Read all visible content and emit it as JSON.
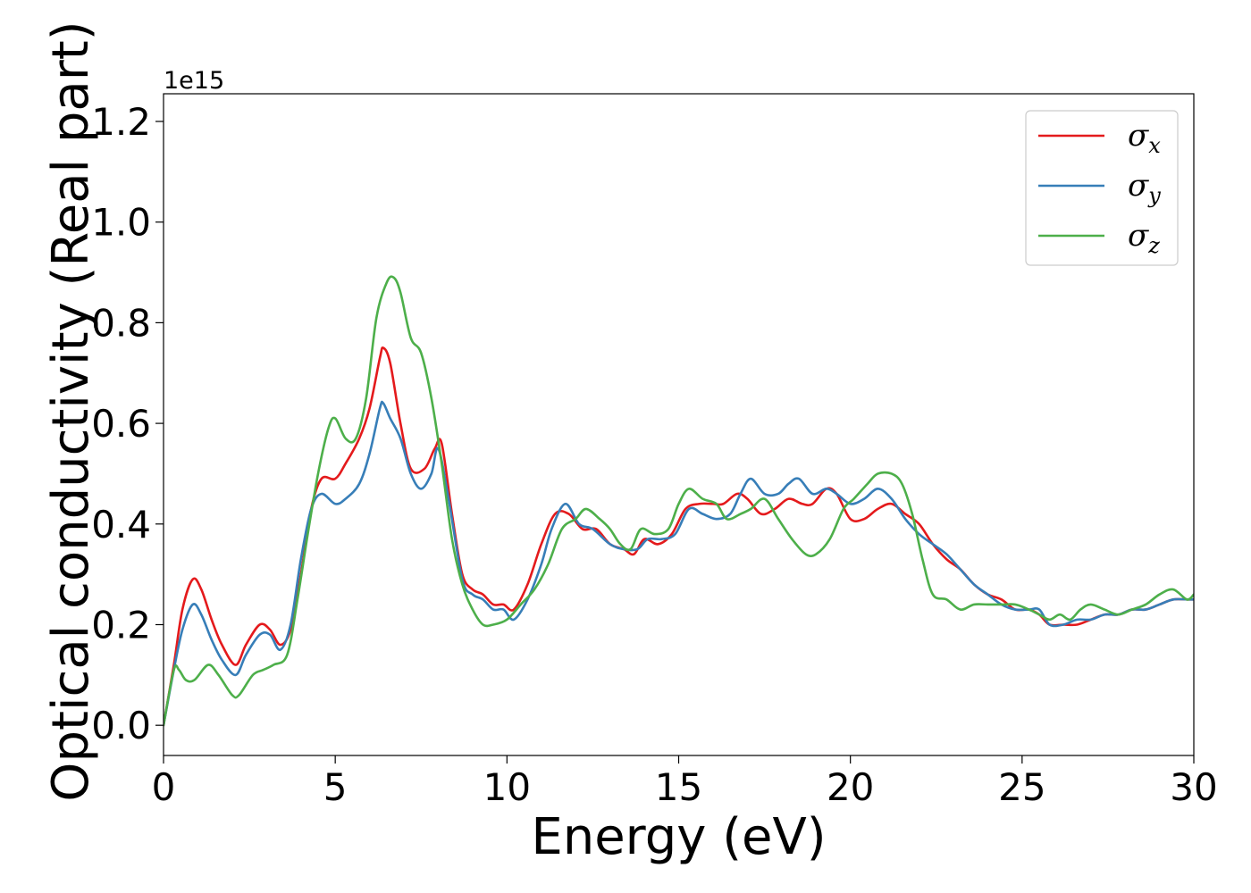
{
  "chart_data": {
    "type": "line",
    "title": "",
    "xlabel": "Energy (eV)",
    "ylabel": "Optical conductivity (Real part)",
    "y_offset_label": "1e15",
    "xlim": [
      0,
      30
    ],
    "ylim": [
      -0.06,
      1.255
    ],
    "xticks": [
      0,
      5,
      10,
      15,
      20,
      25,
      30
    ],
    "xtick_labels": [
      "0",
      "5",
      "10",
      "15",
      "20",
      "25",
      "30"
    ],
    "yticks": [
      0.0,
      0.2,
      0.4,
      0.6,
      0.8,
      1.0,
      1.2
    ],
    "ytick_labels": [
      "0.0",
      "0.2",
      "0.4",
      "0.6",
      "0.8",
      "1.0",
      "1.2"
    ],
    "grid": false,
    "legend_position": "top-right",
    "series": [
      {
        "name": "σ",
        "subscript": "x",
        "color": "#e41a1c",
        "points": [
          [
            0,
            0
          ],
          [
            0.3,
            0.12
          ],
          [
            0.55,
            0.23
          ],
          [
            0.85,
            0.29
          ],
          [
            1.1,
            0.27
          ],
          [
            1.4,
            0.21
          ],
          [
            1.7,
            0.16
          ],
          [
            2.1,
            0.12
          ],
          [
            2.4,
            0.16
          ],
          [
            2.8,
            0.2
          ],
          [
            3.1,
            0.19
          ],
          [
            3.4,
            0.16
          ],
          [
            3.7,
            0.19
          ],
          [
            4.0,
            0.3
          ],
          [
            4.3,
            0.43
          ],
          [
            4.6,
            0.49
          ],
          [
            5.0,
            0.49
          ],
          [
            5.3,
            0.52
          ],
          [
            5.7,
            0.57
          ],
          [
            6.0,
            0.63
          ],
          [
            6.3,
            0.73
          ],
          [
            6.4,
            0.75
          ],
          [
            6.6,
            0.72
          ],
          [
            6.9,
            0.6
          ],
          [
            7.2,
            0.51
          ],
          [
            7.6,
            0.51
          ],
          [
            7.9,
            0.55
          ],
          [
            8.1,
            0.56
          ],
          [
            8.4,
            0.42
          ],
          [
            8.7,
            0.3
          ],
          [
            9.0,
            0.27
          ],
          [
            9.3,
            0.26
          ],
          [
            9.6,
            0.24
          ],
          [
            9.9,
            0.24
          ],
          [
            10.2,
            0.23
          ],
          [
            10.6,
            0.28
          ],
          [
            11.0,
            0.36
          ],
          [
            11.4,
            0.42
          ],
          [
            11.8,
            0.42
          ],
          [
            12.2,
            0.39
          ],
          [
            12.6,
            0.39
          ],
          [
            13.0,
            0.36
          ],
          [
            13.4,
            0.35
          ],
          [
            13.7,
            0.34
          ],
          [
            14.0,
            0.37
          ],
          [
            14.4,
            0.36
          ],
          [
            14.8,
            0.38
          ],
          [
            15.2,
            0.43
          ],
          [
            15.6,
            0.44
          ],
          [
            16.0,
            0.44
          ],
          [
            16.3,
            0.44
          ],
          [
            16.7,
            0.46
          ],
          [
            17.0,
            0.45
          ],
          [
            17.4,
            0.42
          ],
          [
            17.8,
            0.43
          ],
          [
            18.2,
            0.45
          ],
          [
            18.6,
            0.44
          ],
          [
            18.9,
            0.44
          ],
          [
            19.3,
            0.47
          ],
          [
            19.6,
            0.46
          ],
          [
            20.0,
            0.41
          ],
          [
            20.4,
            0.41
          ],
          [
            20.8,
            0.43
          ],
          [
            21.2,
            0.44
          ],
          [
            21.6,
            0.42
          ],
          [
            22.0,
            0.4
          ],
          [
            22.4,
            0.36
          ],
          [
            22.8,
            0.33
          ],
          [
            23.2,
            0.31
          ],
          [
            23.6,
            0.28
          ],
          [
            24.0,
            0.26
          ],
          [
            24.4,
            0.25
          ],
          [
            24.8,
            0.23
          ],
          [
            25.2,
            0.23
          ],
          [
            25.5,
            0.22
          ],
          [
            25.8,
            0.2
          ],
          [
            26.2,
            0.2
          ],
          [
            26.6,
            0.2
          ],
          [
            27.0,
            0.21
          ],
          [
            27.4,
            0.22
          ],
          [
            27.8,
            0.22
          ],
          [
            28.2,
            0.23
          ],
          [
            28.6,
            0.23
          ],
          [
            29.0,
            0.24
          ],
          [
            29.4,
            0.25
          ],
          [
            29.8,
            0.25
          ],
          [
            30.0,
            0.25
          ]
        ]
      },
      {
        "name": "σ",
        "subscript": "y",
        "color": "#377eb8",
        "points": [
          [
            0,
            0
          ],
          [
            0.3,
            0.11
          ],
          [
            0.55,
            0.19
          ],
          [
            0.85,
            0.24
          ],
          [
            1.1,
            0.22
          ],
          [
            1.4,
            0.17
          ],
          [
            1.7,
            0.13
          ],
          [
            2.1,
            0.1
          ],
          [
            2.4,
            0.14
          ],
          [
            2.8,
            0.18
          ],
          [
            3.1,
            0.18
          ],
          [
            3.4,
            0.15
          ],
          [
            3.7,
            0.2
          ],
          [
            4.0,
            0.33
          ],
          [
            4.3,
            0.43
          ],
          [
            4.6,
            0.46
          ],
          [
            5.0,
            0.44
          ],
          [
            5.3,
            0.45
          ],
          [
            5.7,
            0.48
          ],
          [
            6.0,
            0.54
          ],
          [
            6.3,
            0.63
          ],
          [
            6.4,
            0.64
          ],
          [
            6.6,
            0.61
          ],
          [
            6.9,
            0.57
          ],
          [
            7.2,
            0.5
          ],
          [
            7.5,
            0.47
          ],
          [
            7.8,
            0.5
          ],
          [
            8.0,
            0.55
          ],
          [
            8.3,
            0.45
          ],
          [
            8.7,
            0.29
          ],
          [
            9.0,
            0.26
          ],
          [
            9.3,
            0.25
          ],
          [
            9.6,
            0.23
          ],
          [
            9.9,
            0.23
          ],
          [
            10.2,
            0.21
          ],
          [
            10.6,
            0.25
          ],
          [
            11.0,
            0.32
          ],
          [
            11.3,
            0.39
          ],
          [
            11.7,
            0.44
          ],
          [
            12.1,
            0.4
          ],
          [
            12.5,
            0.39
          ],
          [
            13.0,
            0.36
          ],
          [
            13.4,
            0.35
          ],
          [
            13.8,
            0.35
          ],
          [
            14.1,
            0.37
          ],
          [
            14.5,
            0.37
          ],
          [
            14.9,
            0.38
          ],
          [
            15.3,
            0.43
          ],
          [
            15.7,
            0.42
          ],
          [
            16.1,
            0.41
          ],
          [
            16.5,
            0.42
          ],
          [
            16.8,
            0.46
          ],
          [
            17.1,
            0.49
          ],
          [
            17.5,
            0.46
          ],
          [
            17.9,
            0.46
          ],
          [
            18.2,
            0.48
          ],
          [
            18.5,
            0.49
          ],
          [
            18.9,
            0.46
          ],
          [
            19.3,
            0.47
          ],
          [
            19.6,
            0.46
          ],
          [
            20.0,
            0.44
          ],
          [
            20.4,
            0.45
          ],
          [
            20.8,
            0.47
          ],
          [
            21.2,
            0.45
          ],
          [
            21.6,
            0.41
          ],
          [
            22.0,
            0.38
          ],
          [
            22.4,
            0.36
          ],
          [
            22.8,
            0.34
          ],
          [
            23.2,
            0.31
          ],
          [
            23.6,
            0.28
          ],
          [
            24.0,
            0.26
          ],
          [
            24.4,
            0.24
          ],
          [
            24.8,
            0.23
          ],
          [
            25.2,
            0.23
          ],
          [
            25.5,
            0.23
          ],
          [
            25.8,
            0.2
          ],
          [
            26.2,
            0.2
          ],
          [
            26.6,
            0.21
          ],
          [
            27.0,
            0.21
          ],
          [
            27.4,
            0.22
          ],
          [
            27.8,
            0.22
          ],
          [
            28.2,
            0.23
          ],
          [
            28.6,
            0.23
          ],
          [
            29.0,
            0.24
          ],
          [
            29.4,
            0.25
          ],
          [
            29.8,
            0.25
          ],
          [
            30.0,
            0.25
          ]
        ]
      },
      {
        "name": "σ",
        "subscript": "z",
        "color": "#4daf4a",
        "points": [
          [
            0,
            0
          ],
          [
            0.3,
            0.11
          ],
          [
            0.45,
            0.11
          ],
          [
            0.65,
            0.09
          ],
          [
            0.9,
            0.09
          ],
          [
            1.3,
            0.12
          ],
          [
            1.6,
            0.1
          ],
          [
            2.0,
            0.06
          ],
          [
            2.2,
            0.06
          ],
          [
            2.6,
            0.1
          ],
          [
            2.9,
            0.11
          ],
          [
            3.2,
            0.12
          ],
          [
            3.6,
            0.14
          ],
          [
            3.9,
            0.25
          ],
          [
            4.2,
            0.38
          ],
          [
            4.5,
            0.5
          ],
          [
            4.8,
            0.59
          ],
          [
            5.0,
            0.61
          ],
          [
            5.3,
            0.57
          ],
          [
            5.6,
            0.57
          ],
          [
            5.9,
            0.65
          ],
          [
            6.2,
            0.81
          ],
          [
            6.5,
            0.88
          ],
          [
            6.7,
            0.89
          ],
          [
            6.9,
            0.86
          ],
          [
            7.2,
            0.77
          ],
          [
            7.5,
            0.74
          ],
          [
            7.8,
            0.65
          ],
          [
            8.1,
            0.52
          ],
          [
            8.4,
            0.37
          ],
          [
            8.7,
            0.28
          ],
          [
            9.0,
            0.23
          ],
          [
            9.3,
            0.2
          ],
          [
            9.6,
            0.2
          ],
          [
            10.0,
            0.21
          ],
          [
            10.4,
            0.24
          ],
          [
            10.8,
            0.27
          ],
          [
            11.2,
            0.32
          ],
          [
            11.6,
            0.39
          ],
          [
            12.0,
            0.41
          ],
          [
            12.3,
            0.43
          ],
          [
            12.7,
            0.41
          ],
          [
            13.0,
            0.39
          ],
          [
            13.3,
            0.36
          ],
          [
            13.6,
            0.35
          ],
          [
            13.9,
            0.39
          ],
          [
            14.3,
            0.38
          ],
          [
            14.7,
            0.39
          ],
          [
            15.0,
            0.44
          ],
          [
            15.3,
            0.47
          ],
          [
            15.7,
            0.45
          ],
          [
            16.1,
            0.44
          ],
          [
            16.4,
            0.41
          ],
          [
            16.8,
            0.42
          ],
          [
            17.1,
            0.43
          ],
          [
            17.5,
            0.45
          ],
          [
            17.9,
            0.41
          ],
          [
            18.3,
            0.37
          ],
          [
            18.7,
            0.34
          ],
          [
            19.0,
            0.34
          ],
          [
            19.4,
            0.37
          ],
          [
            19.8,
            0.43
          ],
          [
            20.1,
            0.45
          ],
          [
            20.5,
            0.48
          ],
          [
            20.8,
            0.5
          ],
          [
            21.2,
            0.5
          ],
          [
            21.5,
            0.48
          ],
          [
            21.8,
            0.42
          ],
          [
            22.1,
            0.33
          ],
          [
            22.4,
            0.26
          ],
          [
            22.8,
            0.25
          ],
          [
            23.2,
            0.23
          ],
          [
            23.6,
            0.24
          ],
          [
            24.0,
            0.24
          ],
          [
            24.4,
            0.24
          ],
          [
            24.8,
            0.24
          ],
          [
            25.2,
            0.23
          ],
          [
            25.5,
            0.22
          ],
          [
            25.8,
            0.21
          ],
          [
            26.1,
            0.22
          ],
          [
            26.4,
            0.21
          ],
          [
            26.7,
            0.23
          ],
          [
            27.0,
            0.24
          ],
          [
            27.4,
            0.23
          ],
          [
            27.8,
            0.22
          ],
          [
            28.2,
            0.23
          ],
          [
            28.6,
            0.24
          ],
          [
            29.0,
            0.26
          ],
          [
            29.4,
            0.27
          ],
          [
            29.8,
            0.25
          ],
          [
            30.0,
            0.26
          ]
        ]
      }
    ]
  }
}
